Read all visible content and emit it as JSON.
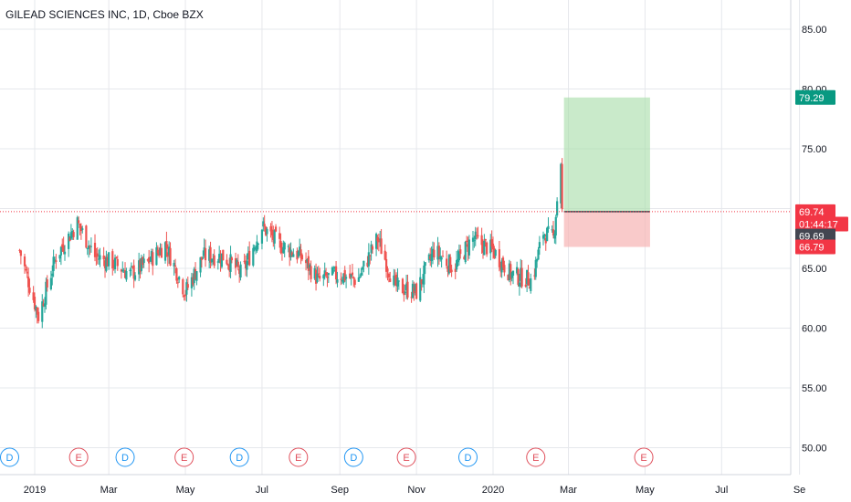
{
  "header": {
    "title": "GILEAD SCIENCES INC, 1D, Cboe BZX"
  },
  "chart_data": {
    "type": "candlestick",
    "title": "GILEAD SCIENCES INC, 1D, Cboe BZX",
    "symbol": "GILEAD SCIENCES INC",
    "interval": "1D",
    "exchange": "Cboe BZX",
    "ylim": [
      47.5,
      87.5
    ],
    "yticks": [
      "85.00",
      "80.00",
      "75.00",
      "70.00",
      "65.00",
      "60.00",
      "55.00",
      "50.00"
    ],
    "xticks": [
      "2019",
      "Mar",
      "May",
      "Jul",
      "Sep",
      "Nov",
      "2020",
      "Mar",
      "May",
      "Jul",
      "Se"
    ],
    "grid": true,
    "series_close": [
      {
        "x": "2018-12-20",
        "close": 66.5
      },
      {
        "x": "2019-01-04",
        "close": 61.0
      },
      {
        "x": "2019-01-18",
        "close": 66.0
      },
      {
        "x": "2019-02-04",
        "close": 68.8
      },
      {
        "x": "2019-02-18",
        "close": 66.0
      },
      {
        "x": "2019-03-04",
        "close": 65.5
      },
      {
        "x": "2019-03-18",
        "close": 64.5
      },
      {
        "x": "2019-04-01",
        "close": 65.5
      },
      {
        "x": "2019-04-15",
        "close": 67.0
      },
      {
        "x": "2019-05-01",
        "close": 63.0
      },
      {
        "x": "2019-05-15",
        "close": 66.0
      },
      {
        "x": "2019-06-01",
        "close": 66.0
      },
      {
        "x": "2019-06-15",
        "close": 64.5
      },
      {
        "x": "2019-07-01",
        "close": 68.5
      },
      {
        "x": "2019-07-15",
        "close": 67.0
      },
      {
        "x": "2019-08-01",
        "close": 66.0
      },
      {
        "x": "2019-08-15",
        "close": 64.0
      },
      {
        "x": "2019-09-01",
        "close": 64.5
      },
      {
        "x": "2019-09-15",
        "close": 64.0
      },
      {
        "x": "2019-10-01",
        "close": 67.5
      },
      {
        "x": "2019-10-15",
        "close": 63.5
      },
      {
        "x": "2019-11-01",
        "close": 63.0
      },
      {
        "x": "2019-11-15",
        "close": 66.5
      },
      {
        "x": "2019-12-01",
        "close": 65.0
      },
      {
        "x": "2019-12-15",
        "close": 67.5
      },
      {
        "x": "2020-01-01",
        "close": 66.5
      },
      {
        "x": "2020-01-15",
        "close": 64.5
      },
      {
        "x": "2020-02-01",
        "close": 64.0
      },
      {
        "x": "2020-02-10",
        "close": 68.0
      },
      {
        "x": "2020-02-18",
        "close": 67.5
      },
      {
        "x": "2020-02-24",
        "close": 74.0
      },
      {
        "x": "2020-02-25",
        "close": 69.69
      }
    ],
    "price_labels": [
      {
        "label": "79.29",
        "value": 79.29,
        "color": "#089981",
        "role": "target"
      },
      {
        "label": "69.74",
        "value": 69.74,
        "color": "#f23645",
        "role": "entry"
      },
      {
        "label": "01:44:17",
        "value": 68.7,
        "color": "#f23645",
        "role": "countdown"
      },
      {
        "label": "69.69",
        "value": 67.7,
        "color": "#434651",
        "role": "last"
      },
      {
        "label": "66.79",
        "value": 66.79,
        "color": "#f23645",
        "role": "stop"
      }
    ],
    "position": {
      "start": "2020-02-25",
      "end": "2020-05-05",
      "entry": 69.74,
      "target": 79.29,
      "stop": 66.79
    },
    "events": [
      {
        "x": "2018-12-12",
        "label": "D",
        "type": "dividend"
      },
      {
        "x": "2019-02-05",
        "label": "E",
        "type": "earnings"
      },
      {
        "x": "2019-03-14",
        "label": "D",
        "type": "dividend"
      },
      {
        "x": "2019-04-30",
        "label": "E",
        "type": "earnings"
      },
      {
        "x": "2019-06-13",
        "label": "D",
        "type": "dividend"
      },
      {
        "x": "2019-07-30",
        "label": "E",
        "type": "earnings"
      },
      {
        "x": "2019-09-12",
        "label": "D",
        "type": "dividend"
      },
      {
        "x": "2019-10-24",
        "label": "E",
        "type": "earnings"
      },
      {
        "x": "2019-12-12",
        "label": "D",
        "type": "dividend"
      },
      {
        "x": "2020-02-04",
        "label": "E",
        "type": "earnings"
      },
      {
        "x": "2020-04-30",
        "label": "E",
        "type": "earnings"
      }
    ]
  },
  "colors": {
    "up": "#26a69a",
    "down": "#ef5350",
    "grid": "#e6e8ec",
    "target_zone": "#a5dca6",
    "stop_zone": "#f7b3b3",
    "dividend": "#2196f3",
    "earnings": "#e0505c"
  }
}
